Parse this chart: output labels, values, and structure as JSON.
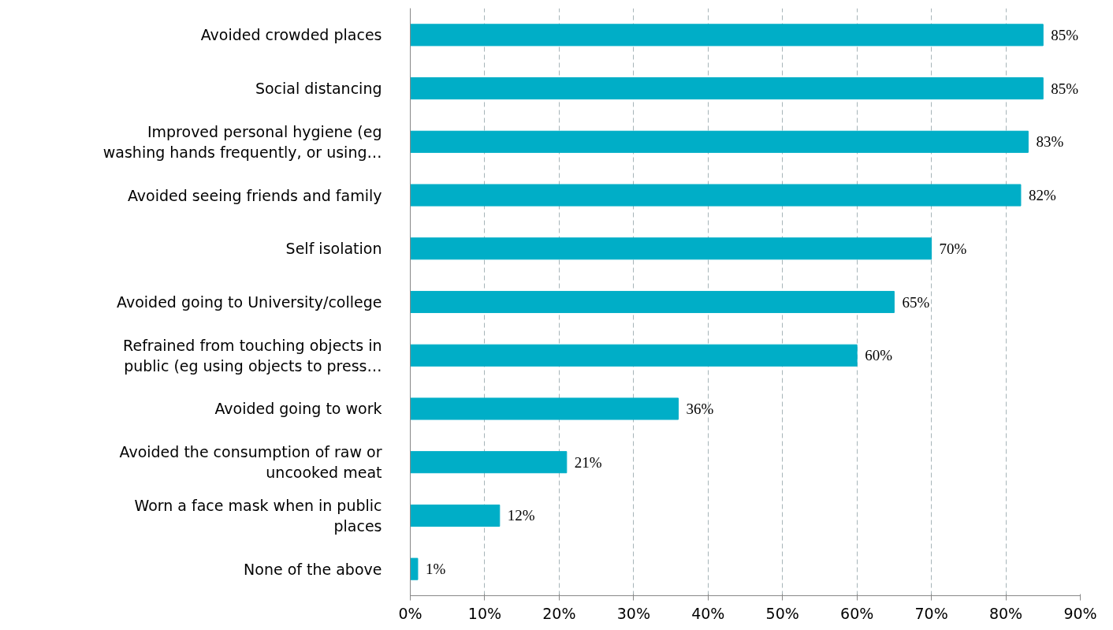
{
  "chart_data": {
    "type": "bar",
    "orientation": "horizontal",
    "categories": [
      "Avoided crowded places",
      "Social distancing",
      "Improved personal hygiene (eg\nwashing hands frequently, or using…",
      "Avoided seeing friends and family",
      "Self isolation",
      "Avoided going to University/college",
      "Refrained from touching objects in\npublic (eg using objects to press…",
      "Avoided going to work",
      "Avoided the consumption of raw or\nuncooked meat",
      "Worn a face mask when in public\nplaces",
      "None of the above"
    ],
    "values": [
      85,
      85,
      83,
      82,
      70,
      65,
      60,
      36,
      21,
      12,
      1
    ],
    "value_labels": [
      "85%",
      "85%",
      "83%",
      "82%",
      "70%",
      "65%",
      "60%",
      "36%",
      "21%",
      "12%",
      "1%"
    ],
    "color": "#00aec7",
    "xlim": [
      0,
      90
    ],
    "xticks": [
      {
        "value": 0,
        "label": "0%"
      },
      {
        "value": 10,
        "label": "10%"
      },
      {
        "value": 20,
        "label": "20%"
      },
      {
        "value": 30,
        "label": "30%"
      },
      {
        "value": 40,
        "label": "40%"
      },
      {
        "value": 50,
        "label": "50%"
      },
      {
        "value": 60,
        "label": "60%"
      },
      {
        "value": 70,
        "label": "70%"
      },
      {
        "value": 80,
        "label": "80%"
      },
      {
        "value": 90,
        "label": "90%"
      }
    ],
    "grid": "x"
  }
}
